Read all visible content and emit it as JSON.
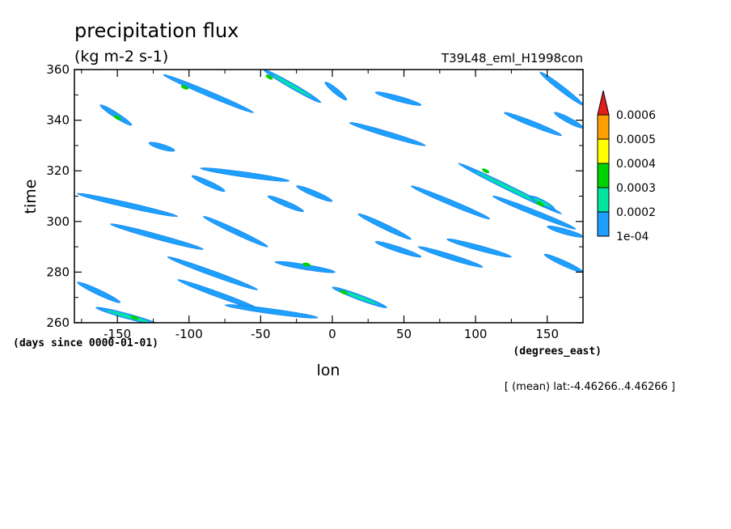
{
  "chart_data": {
    "type": "heatmap",
    "title": "precipitation flux",
    "units": "(kg m-2 s-1)",
    "dataset": "T39L48_eml_H1998con",
    "xlabel": "lon",
    "ylabel": "time",
    "x_units": "(degrees_east)",
    "y_units": "(days since 0000-01-01)",
    "xlim": [
      -180,
      175
    ],
    "ylim": [
      260,
      360
    ],
    "x_ticks": [
      -150,
      -100,
      -50,
      0,
      50,
      100,
      150
    ],
    "y_ticks": [
      260,
      280,
      300,
      320,
      340,
      360
    ],
    "average_note": "[ (mean) lat:-4.46266..4.46266 ]",
    "colorbar": {
      "levels": [
        "1e-04",
        "0.0002",
        "0.0003",
        "0.0004",
        "0.0005",
        "0.0006"
      ],
      "colors": [
        "#1ea0ff",
        "#00e6a0",
        "#00d200",
        "#ffff00",
        "#ffa000",
        "#e61e1e"
      ]
    },
    "bands": [
      {
        "x0": -178,
        "t0": 311,
        "x1": -108,
        "t1": 302,
        "level": 1
      },
      {
        "x0": -178,
        "t0": 276,
        "x1": -148,
        "t1": 268,
        "level": 1
      },
      {
        "x0": -165,
        "t0": 266,
        "x1": -120,
        "t1": 259,
        "level": 2,
        "peak": {
          "x": -138,
          "t": 262,
          "level": 3
        }
      },
      {
        "x0": -162,
        "t0": 346,
        "x1": -140,
        "t1": 338,
        "level": 1,
        "peak": {
          "x": -150,
          "t": 341,
          "level": 3
        }
      },
      {
        "x0": -155,
        "t0": 299,
        "x1": -90,
        "t1": 289,
        "level": 1
      },
      {
        "x0": -118,
        "t0": 358,
        "x1": -55,
        "t1": 343,
        "level": 1,
        "peak": {
          "x": -103,
          "t": 353,
          "level": 3
        }
      },
      {
        "x0": -115,
        "t0": 286,
        "x1": -52,
        "t1": 273,
        "level": 1
      },
      {
        "x0": -108,
        "t0": 277,
        "x1": -50,
        "t1": 265,
        "level": 1
      },
      {
        "x0": -98,
        "t0": 318,
        "x1": -75,
        "t1": 312,
        "level": 1
      },
      {
        "x0": -90,
        "t0": 302,
        "x1": -45,
        "t1": 290,
        "level": 1
      },
      {
        "x0": -92,
        "t0": 321,
        "x1": -30,
        "t1": 316,
        "level": 1
      },
      {
        "x0": -75,
        "t0": 267,
        "x1": -10,
        "t1": 262,
        "level": 1
      },
      {
        "x0": -48,
        "t0": 360,
        "x1": -8,
        "t1": 347,
        "level": 2,
        "peak": {
          "x": -44,
          "t": 357,
          "level": 3
        }
      },
      {
        "x0": -45,
        "t0": 310,
        "x1": -20,
        "t1": 304,
        "level": 1
      },
      {
        "x0": -40,
        "t0": 284,
        "x1": 2,
        "t1": 280,
        "level": 1,
        "peak": {
          "x": -18,
          "t": 283,
          "level": 3
        }
      },
      {
        "x0": -5,
        "t0": 355,
        "x1": 10,
        "t1": 348,
        "level": 1
      },
      {
        "x0": 0,
        "t0": 274,
        "x1": 38,
        "t1": 266,
        "level": 2,
        "peak": {
          "x": 8,
          "t": 272,
          "level": 3
        }
      },
      {
        "x0": 12,
        "t0": 339,
        "x1": 65,
        "t1": 330,
        "level": 1
      },
      {
        "x0": 18,
        "t0": 303,
        "x1": 55,
        "t1": 293,
        "level": 1
      },
      {
        "x0": 30,
        "t0": 292,
        "x1": 62,
        "t1": 286,
        "level": 1
      },
      {
        "x0": 30,
        "t0": 351,
        "x1": 62,
        "t1": 346,
        "level": 1
      },
      {
        "x0": 55,
        "t0": 314,
        "x1": 110,
        "t1": 301,
        "level": 1
      },
      {
        "x0": 60,
        "t0": 290,
        "x1": 105,
        "t1": 282,
        "level": 1
      },
      {
        "x0": 88,
        "t0": 323,
        "x1": 160,
        "t1": 303,
        "level": 2,
        "peak": {
          "x": 107,
          "t": 320,
          "level": 3
        }
      },
      {
        "x0": 112,
        "t0": 310,
        "x1": 170,
        "t1": 297,
        "level": 1
      },
      {
        "x0": 120,
        "t0": 343,
        "x1": 160,
        "t1": 334,
        "level": 1
      },
      {
        "x0": 138,
        "t0": 310,
        "x1": 155,
        "t1": 305,
        "level": 2,
        "peak": {
          "x": 145,
          "t": 307,
          "level": 3
        }
      },
      {
        "x0": 145,
        "t0": 359,
        "x1": 175,
        "t1": 346,
        "level": 1
      },
      {
        "x0": 148,
        "t0": 287,
        "x1": 175,
        "t1": 280,
        "level": 1
      },
      {
        "x0": 150,
        "t0": 298,
        "x1": 175,
        "t1": 294,
        "level": 1
      },
      {
        "x0": -128,
        "t0": 331,
        "x1": -110,
        "t1": 328,
        "level": 1
      },
      {
        "x0": 80,
        "t0": 293,
        "x1": 125,
        "t1": 286,
        "level": 1
      },
      {
        "x0": 155,
        "t0": 343,
        "x1": 175,
        "t1": 337,
        "level": 1
      },
      {
        "x0": -25,
        "t0": 314,
        "x1": 0,
        "t1": 308,
        "level": 1
      }
    ]
  }
}
